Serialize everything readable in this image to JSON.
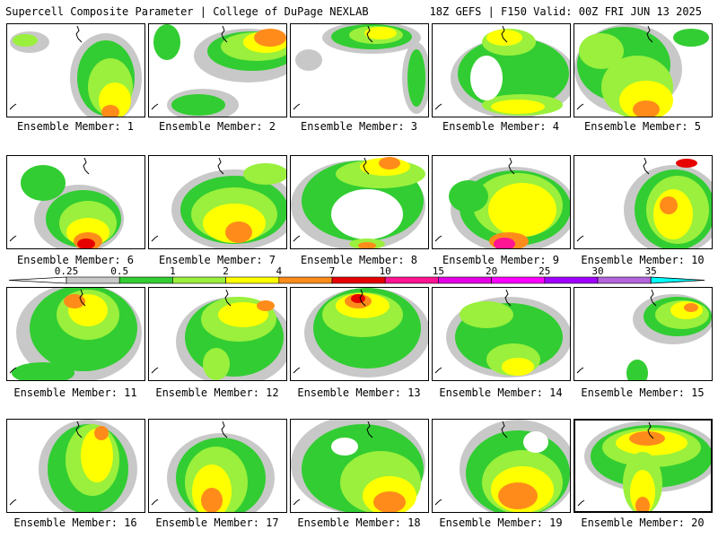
{
  "header": {
    "left": "Supercell Composite Parameter | College of DuPage NEXLAB",
    "right": "18Z GEFS | F150 Valid: 00Z FRI JUN 13 2025"
  },
  "colors": {
    "0.25": "#c8c8c8",
    "0.5": "#32cd32",
    "1": "#9af03c",
    "2": "#ffff00",
    "4": "#ff8c1a",
    "7": "#e60000",
    "10": "#ff1493",
    "15": "#e600e6",
    "20": "#ff00ff",
    "25": "#a000ff",
    "30": "#b464dc",
    "35": "#00ffff"
  },
  "colorbar": {
    "labels": [
      "0.25",
      "0.5",
      "1",
      "2",
      "4",
      "7",
      "10",
      "15",
      "20",
      "25",
      "30",
      "35"
    ],
    "colors": [
      "#c8c8c8",
      "#32cd32",
      "#9af03c",
      "#ffff00",
      "#ff8c1a",
      "#e60000",
      "#ff1493",
      "#e600e6",
      "#ff00ff",
      "#a000ff",
      "#b464dc",
      "#00ffff"
    ]
  },
  "members": [
    {
      "label": "Ensemble Member: 1"
    },
    {
      "label": "Ensemble Member: 2"
    },
    {
      "label": "Ensemble Member: 3"
    },
    {
      "label": "Ensemble Member: 4"
    },
    {
      "label": "Ensemble Member: 5"
    },
    {
      "label": "Ensemble Member: 6"
    },
    {
      "label": "Ensemble Member: 7"
    },
    {
      "label": "Ensemble Member: 8"
    },
    {
      "label": "Ensemble Member: 9"
    },
    {
      "label": "Ensemble Member: 10"
    },
    {
      "label": "Ensemble Member: 11"
    },
    {
      "label": "Ensemble Member: 12"
    },
    {
      "label": "Ensemble Member: 13"
    },
    {
      "label": "Ensemble Member: 14"
    },
    {
      "label": "Ensemble Member: 15"
    },
    {
      "label": "Ensemble Member: 16"
    },
    {
      "label": "Ensemble Member: 17"
    },
    {
      "label": "Ensemble Member: 18"
    },
    {
      "label": "Ensemble Member: 19"
    },
    {
      "label": "Ensemble Member: 20"
    }
  ]
}
